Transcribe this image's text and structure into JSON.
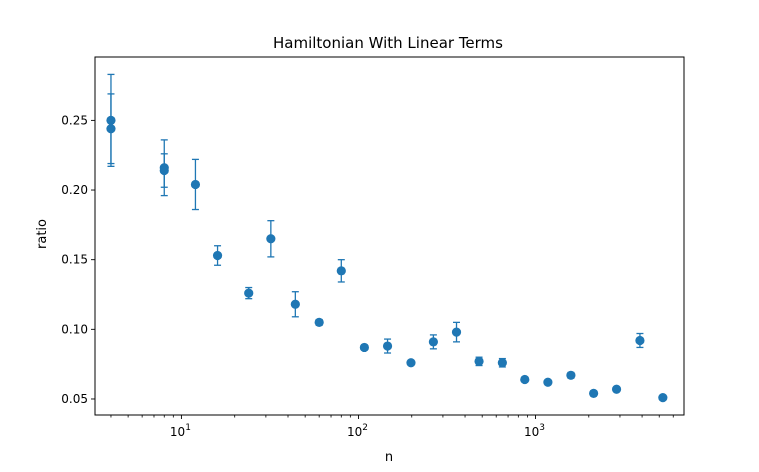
{
  "chart_data": {
    "type": "scatter",
    "title": "Hamiltonian With Linear Terms",
    "xlabel": "n",
    "ylabel": "ratio",
    "xscale": "log",
    "xlim": [
      3.25,
      6900
    ],
    "ylim": [
      0.0385,
      0.2955
    ],
    "grid": false,
    "legend": "none",
    "marker_color": "#1f77b4",
    "x_ticks": [
      {
        "value": 10,
        "base": "10",
        "exp": "1"
      },
      {
        "value": 100,
        "base": "10",
        "exp": "2"
      },
      {
        "value": 1000,
        "base": "10",
        "exp": "3"
      }
    ],
    "y_ticks": [
      {
        "value": 0.05,
        "label": "0.05"
      },
      {
        "value": 0.1,
        "label": "0.10"
      },
      {
        "value": 0.15,
        "label": "0.15"
      },
      {
        "value": 0.2,
        "label": "0.20"
      },
      {
        "value": 0.25,
        "label": "0.25"
      }
    ],
    "points": [
      {
        "x": 4,
        "y": 0.25,
        "err": 0.033
      },
      {
        "x": 4,
        "y": 0.244,
        "err": 0.025
      },
      {
        "x": 8,
        "y": 0.216,
        "err": 0.02
      },
      {
        "x": 8,
        "y": 0.214,
        "err": 0.012
      },
      {
        "x": 12,
        "y": 0.204,
        "err": 0.018
      },
      {
        "x": 16,
        "y": 0.153,
        "err": 0.007
      },
      {
        "x": 24,
        "y": 0.126,
        "err": 0.004
      },
      {
        "x": 32,
        "y": 0.165,
        "err": 0.013
      },
      {
        "x": 44,
        "y": 0.118,
        "err": 0.009
      },
      {
        "x": 60,
        "y": 0.105,
        "err": 0.002
      },
      {
        "x": 80,
        "y": 0.142,
        "err": 0.008
      },
      {
        "x": 108,
        "y": 0.087,
        "err": 0.001
      },
      {
        "x": 146,
        "y": 0.088,
        "err": 0.005
      },
      {
        "x": 198,
        "y": 0.076,
        "err": 0.001
      },
      {
        "x": 265,
        "y": 0.091,
        "err": 0.005
      },
      {
        "x": 358,
        "y": 0.098,
        "err": 0.007
      },
      {
        "x": 480,
        "y": 0.077,
        "err": 0.003
      },
      {
        "x": 650,
        "y": 0.076,
        "err": 0.003
      },
      {
        "x": 870,
        "y": 0.064,
        "err": 0.001
      },
      {
        "x": 1175,
        "y": 0.062,
        "err": 0.001
      },
      {
        "x": 1585,
        "y": 0.067,
        "err": 0.002
      },
      {
        "x": 2130,
        "y": 0.054,
        "err": 0.001
      },
      {
        "x": 2870,
        "y": 0.057,
        "err": 0.001
      },
      {
        "x": 3890,
        "y": 0.092,
        "err": 0.005
      },
      {
        "x": 5240,
        "y": 0.051,
        "err": 0.001
      }
    ]
  }
}
